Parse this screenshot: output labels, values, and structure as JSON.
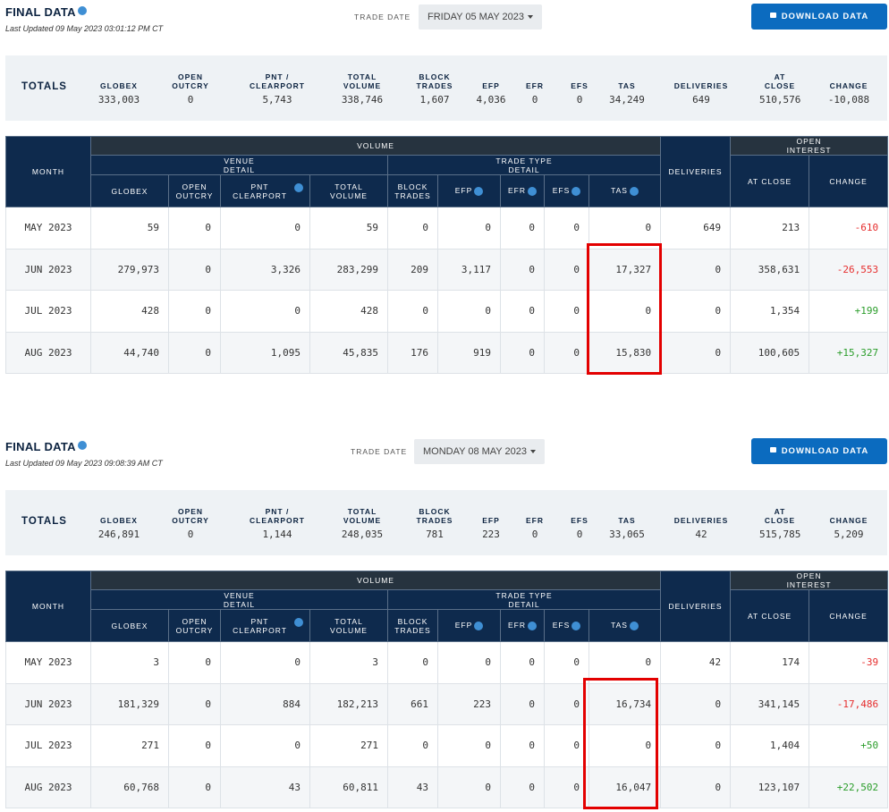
{
  "panels": [
    {
      "title": "FINAL DATA",
      "last_updated": "Last Updated 09 May 2023 03:01:12 PM CT",
      "trade_date_label": "TRADE DATE",
      "trade_date": "FRIDAY 05 MAY 2023",
      "download": "DOWNLOAD DATA",
      "totals": {
        "label": "TOTALS",
        "columns": [
          "GLOBEX",
          "OPEN OUTCRY",
          "PNT / CLEARPORT",
          "TOTAL VOLUME",
          "BLOCK TRADES",
          "EFP",
          "EFR",
          "EFS",
          "TAS",
          "DELIVERIES",
          "AT CLOSE",
          "CHANGE"
        ],
        "values": [
          "333,003",
          "0",
          "5,743",
          "338,746",
          "1,607",
          "4,036",
          "0",
          "0",
          "34,249",
          "649",
          "510,576",
          "-10,088"
        ]
      },
      "table": {
        "month": "MONTH",
        "volume": "VOLUME",
        "deliveries": "DELIVERIES",
        "open_interest": "OPEN INTEREST",
        "venue_detail": "VENUE DETAIL",
        "trade_type_detail": "TRADE TYPE DETAIL",
        "at_close": "AT CLOSE",
        "change": "CHANGE",
        "columns": [
          "GLOBEX",
          "OPEN OUTCRY",
          "PNT CLEARPORT",
          "TOTAL VOLUME",
          "BLOCK TRADES",
          "EFP",
          "EFR",
          "EFS",
          "TAS"
        ],
        "rows": [
          [
            "MAY 2023",
            "59",
            "0",
            "0",
            "59",
            "0",
            "0",
            "0",
            "0",
            "0",
            "649",
            "213",
            "-610"
          ],
          [
            "JUN 2023",
            "279,973",
            "0",
            "3,326",
            "283,299",
            "209",
            "3,117",
            "0",
            "0",
            "17,327",
            "0",
            "358,631",
            "-26,553"
          ],
          [
            "JUL 2023",
            "428",
            "0",
            "0",
            "428",
            "0",
            "0",
            "0",
            "0",
            "0",
            "0",
            "1,354",
            "+199"
          ],
          [
            "AUG 2023",
            "44,740",
            "0",
            "1,095",
            "45,835",
            "176",
            "919",
            "0",
            "0",
            "15,830",
            "0",
            "100,605",
            "+15,327"
          ]
        ]
      }
    },
    {
      "title": "FINAL DATA",
      "last_updated": "Last Updated 09 May 2023 09:08:39 AM CT",
      "trade_date_label": "TRADE DATE",
      "trade_date": "MONDAY 08 MAY 2023",
      "download": "DOWNLOAD DATA",
      "totals": {
        "label": "TOTALS",
        "columns": [
          "GLOBEX",
          "OPEN OUTCRY",
          "PNT / CLEARPORT",
          "TOTAL VOLUME",
          "BLOCK TRADES",
          "EFP",
          "EFR",
          "EFS",
          "TAS",
          "DELIVERIES",
          "AT CLOSE",
          "CHANGE"
        ],
        "values": [
          "246,891",
          "0",
          "1,144",
          "248,035",
          "781",
          "223",
          "0",
          "0",
          "33,065",
          "42",
          "515,785",
          "5,209"
        ]
      },
      "table": {
        "month": "MONTH",
        "volume": "VOLUME",
        "deliveries": "DELIVERIES",
        "open_interest": "OPEN INTEREST",
        "venue_detail": "VENUE DETAIL",
        "trade_type_detail": "TRADE TYPE DETAIL",
        "at_close": "AT CLOSE",
        "change": "CHANGE",
        "columns": [
          "GLOBEX",
          "OPEN OUTCRY",
          "PNT CLEARPORT",
          "TOTAL VOLUME",
          "BLOCK TRADES",
          "EFP",
          "EFR",
          "EFS",
          "TAS"
        ],
        "rows": [
          [
            "MAY 2023",
            "3",
            "0",
            "0",
            "3",
            "0",
            "0",
            "0",
            "0",
            "0",
            "42",
            "174",
            "-39"
          ],
          [
            "JUN 2023",
            "181,329",
            "0",
            "884",
            "182,213",
            "661",
            "223",
            "0",
            "0",
            "16,734",
            "0",
            "341,145",
            "-17,486"
          ],
          [
            "JUL 2023",
            "271",
            "0",
            "0",
            "271",
            "0",
            "0",
            "0",
            "0",
            "0",
            "0",
            "1,404",
            "+50"
          ],
          [
            "AUG 2023",
            "60,768",
            "0",
            "43",
            "60,811",
            "43",
            "0",
            "0",
            "0",
            "16,047",
            "0",
            "123,107",
            "+22,502"
          ]
        ]
      }
    }
  ]
}
